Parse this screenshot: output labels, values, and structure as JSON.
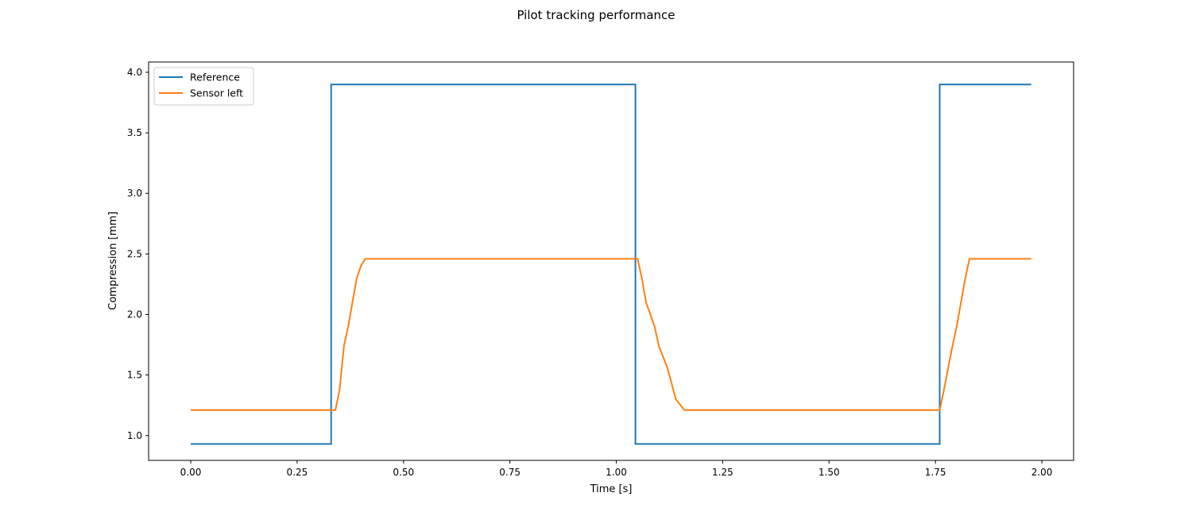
{
  "chart_data": {
    "type": "line",
    "title": "Pilot tracking performance",
    "xlabel": "Time [s]",
    "ylabel": "Compression [mm]",
    "xlim": [
      -0.099,
      2.0746
    ],
    "ylim": [
      0.795,
      4.085
    ],
    "xticks": [
      0.0,
      0.25,
      0.5,
      0.75,
      1.0,
      1.25,
      1.5,
      1.75,
      2.0
    ],
    "xtick_labels": [
      "0.00",
      "0.25",
      "0.50",
      "0.75",
      "1.00",
      "1.25",
      "1.50",
      "1.75",
      "2.00"
    ],
    "yticks": [
      1.0,
      1.5,
      2.0,
      2.5,
      3.0,
      3.5,
      4.0
    ],
    "ytick_labels": [
      "1.0",
      "1.5",
      "2.0",
      "2.5",
      "3.0",
      "3.5",
      "4.0"
    ],
    "grid": false,
    "legend_position": "upper left",
    "series": [
      {
        "name": "Reference",
        "color": "#1f77b4",
        "x": [
          0.0,
          0.33,
          0.33,
          1.045,
          1.045,
          1.76,
          1.76,
          1.975
        ],
        "y": [
          0.93,
          0.93,
          3.9,
          3.9,
          0.93,
          0.93,
          3.9,
          3.9
        ]
      },
      {
        "name": "Sensor left",
        "color": "#ff7f0e",
        "x": [
          0.0,
          0.34,
          0.35,
          0.36,
          0.37,
          0.38,
          0.39,
          0.4,
          0.41,
          0.42,
          1.05,
          1.06,
          1.07,
          1.08,
          1.09,
          1.1,
          1.12,
          1.14,
          1.16,
          1.76,
          1.77,
          1.78,
          1.79,
          1.8,
          1.81,
          1.82,
          1.83,
          1.975
        ],
        "y": [
          1.21,
          1.21,
          1.38,
          1.74,
          1.9,
          2.1,
          2.3,
          2.4,
          2.46,
          2.46,
          2.46,
          2.3,
          2.1,
          2.0,
          1.9,
          1.74,
          1.56,
          1.3,
          1.21,
          1.21,
          1.38,
          1.56,
          1.74,
          1.9,
          2.1,
          2.3,
          2.46,
          2.46
        ]
      }
    ]
  }
}
